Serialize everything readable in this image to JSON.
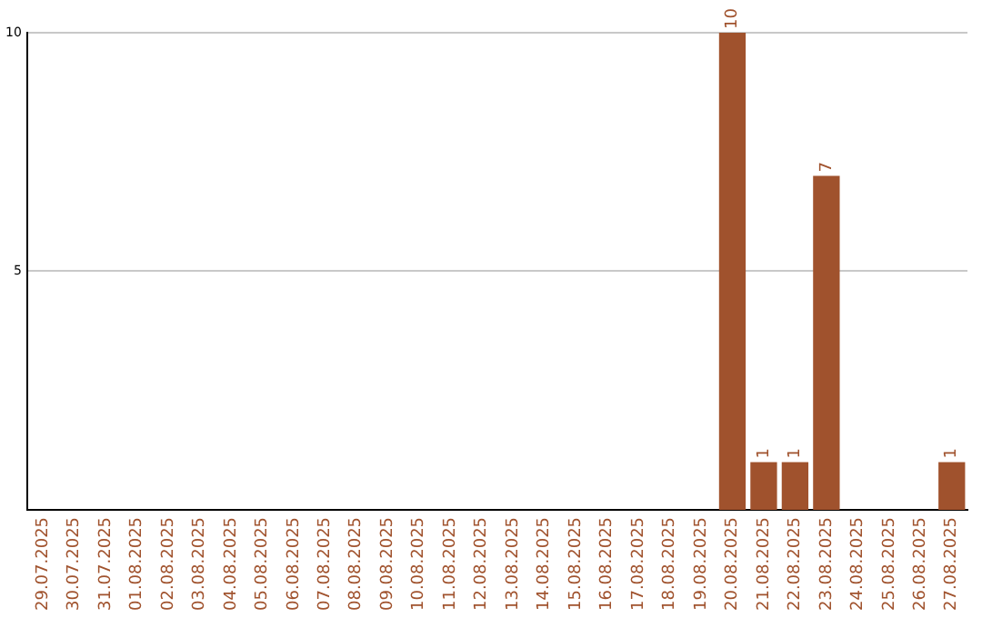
{
  "chart_data": {
    "type": "bar",
    "categories": [
      "29.07.2025",
      "30.07.2025",
      "31.07.2025",
      "01.08.2025",
      "02.08.2025",
      "03.08.2025",
      "04.08.2025",
      "05.08.2025",
      "06.08.2025",
      "07.08.2025",
      "08.08.2025",
      "09.08.2025",
      "10.08.2025",
      "11.08.2025",
      "12.08.2025",
      "13.08.2025",
      "14.08.2025",
      "15.08.2025",
      "16.08.2025",
      "17.08.2025",
      "18.08.2025",
      "19.08.2025",
      "20.08.2025",
      "21.08.2025",
      "22.08.2025",
      "23.08.2025",
      "24.08.2025",
      "25.08.2025",
      "26.08.2025",
      "27.08.2025"
    ],
    "values": [
      0,
      0,
      0,
      0,
      0,
      0,
      0,
      0,
      0,
      0,
      0,
      0,
      0,
      0,
      0,
      0,
      0,
      0,
      0,
      0,
      0,
      0,
      10,
      1,
      1,
      7,
      0,
      0,
      0,
      1
    ],
    "value_labels": [
      null,
      null,
      null,
      null,
      null,
      null,
      null,
      null,
      null,
      null,
      null,
      null,
      null,
      null,
      null,
      null,
      null,
      null,
      null,
      null,
      null,
      null,
      "10",
      "1",
      "1",
      "7",
      null,
      null,
      null,
      "1"
    ],
    "color": "#a0522d",
    "ylim": [
      0,
      10
    ],
    "yticks": [
      5,
      10
    ],
    "grid": "y",
    "legend": false
  }
}
